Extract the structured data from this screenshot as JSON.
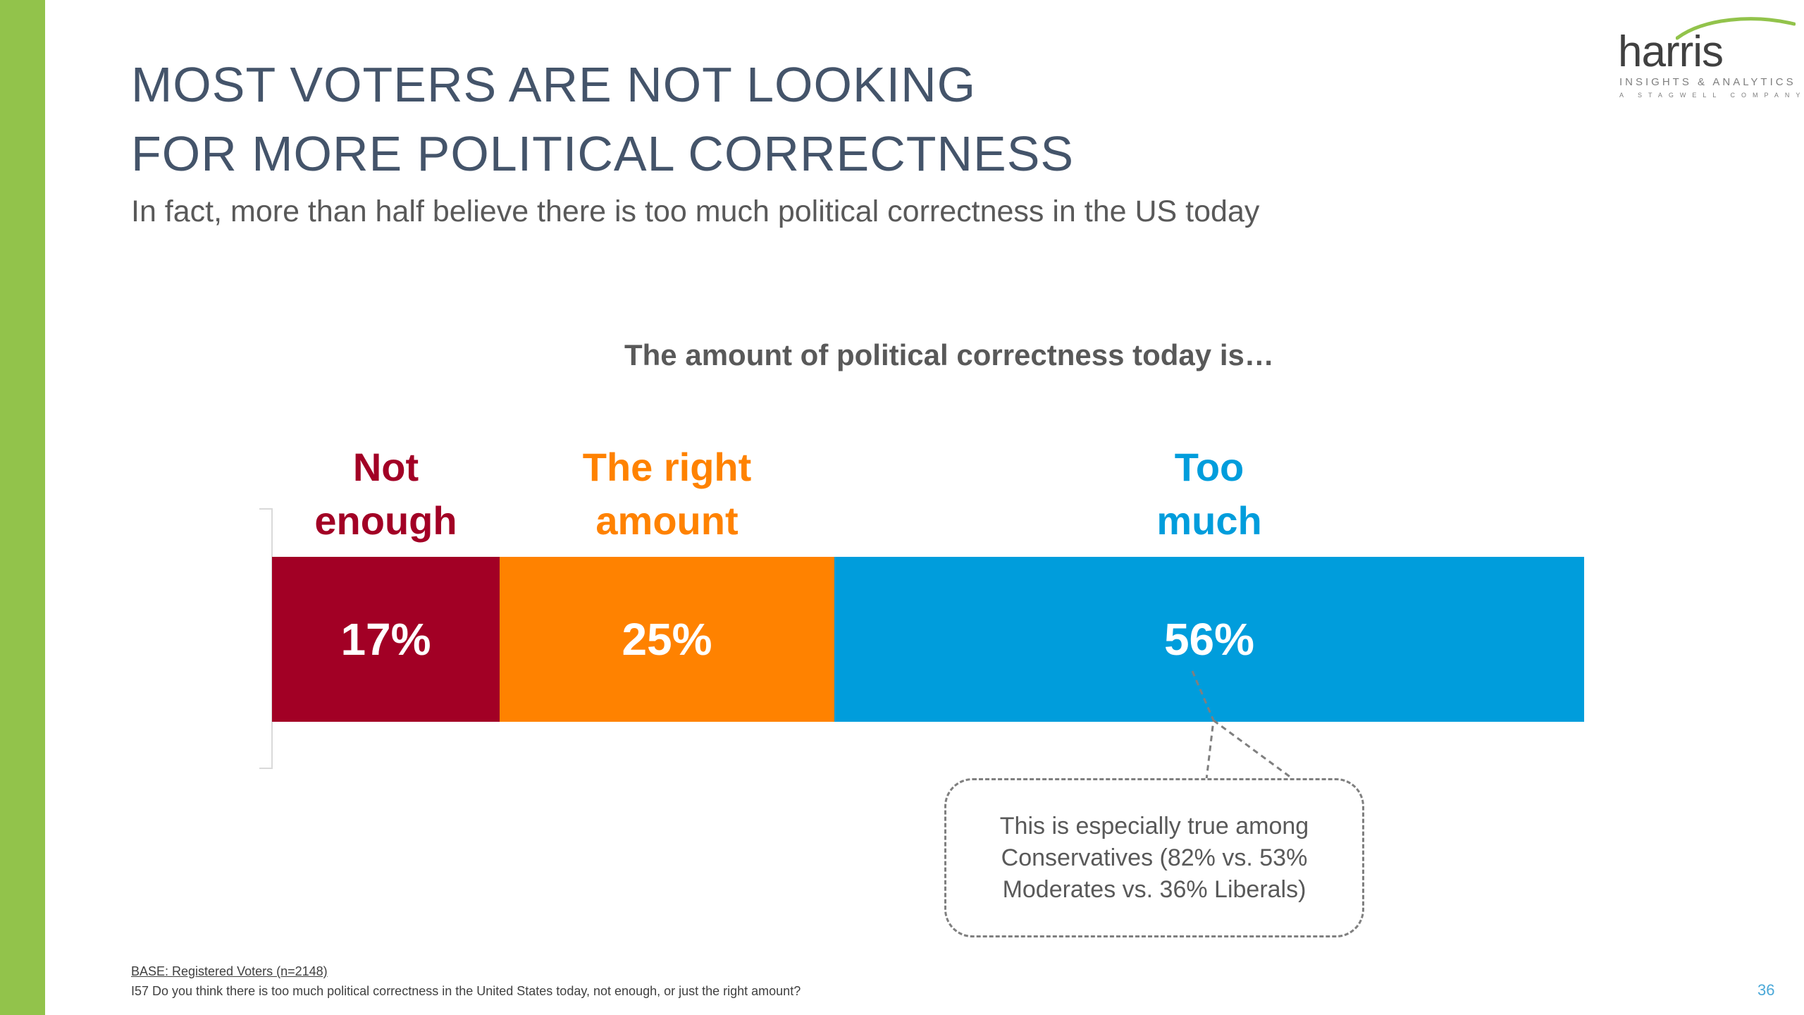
{
  "slide": {
    "title_line_1": "MOST VOTERS ARE NOT LOOKING",
    "title_line_2": "FOR MORE POLITICAL CORRECTNESS",
    "subtitle": "In fact, more than half believe there is too much political correctness in the US today",
    "accent_color": "#92c34b"
  },
  "logo": {
    "wordmark": "harris",
    "tagline": "INSIGHTS & ANALYTICS",
    "parent": "A STAGWELL COMPANY"
  },
  "chart_data": {
    "type": "bar",
    "orientation": "horizontal-stacked",
    "title": "The amount of political correctness today is…",
    "categories": [
      "Not enough",
      "The right amount",
      "Too much"
    ],
    "category_label_lines": [
      [
        "Not",
        "enough"
      ],
      [
        "The right",
        "amount"
      ],
      [
        "Too",
        "much"
      ]
    ],
    "values": [
      17,
      25,
      56
    ],
    "value_labels": [
      "17%",
      "25%",
      "56%"
    ],
    "colors": [
      "#a20025",
      "#ff8200",
      "#009ddc"
    ],
    "unit": "%",
    "legend": "none",
    "grid": false
  },
  "callout": {
    "lines": [
      "This is especially true among",
      "Conservatives (82% vs. 53%",
      "Moderates vs. 36% Liberals)"
    ]
  },
  "footer": {
    "base": "BASE: Registered Voters (n=2148)",
    "question": "I57 Do you think there is too much political correctness in the United States today, not enough, or just the right amount?",
    "page_number": "36"
  }
}
